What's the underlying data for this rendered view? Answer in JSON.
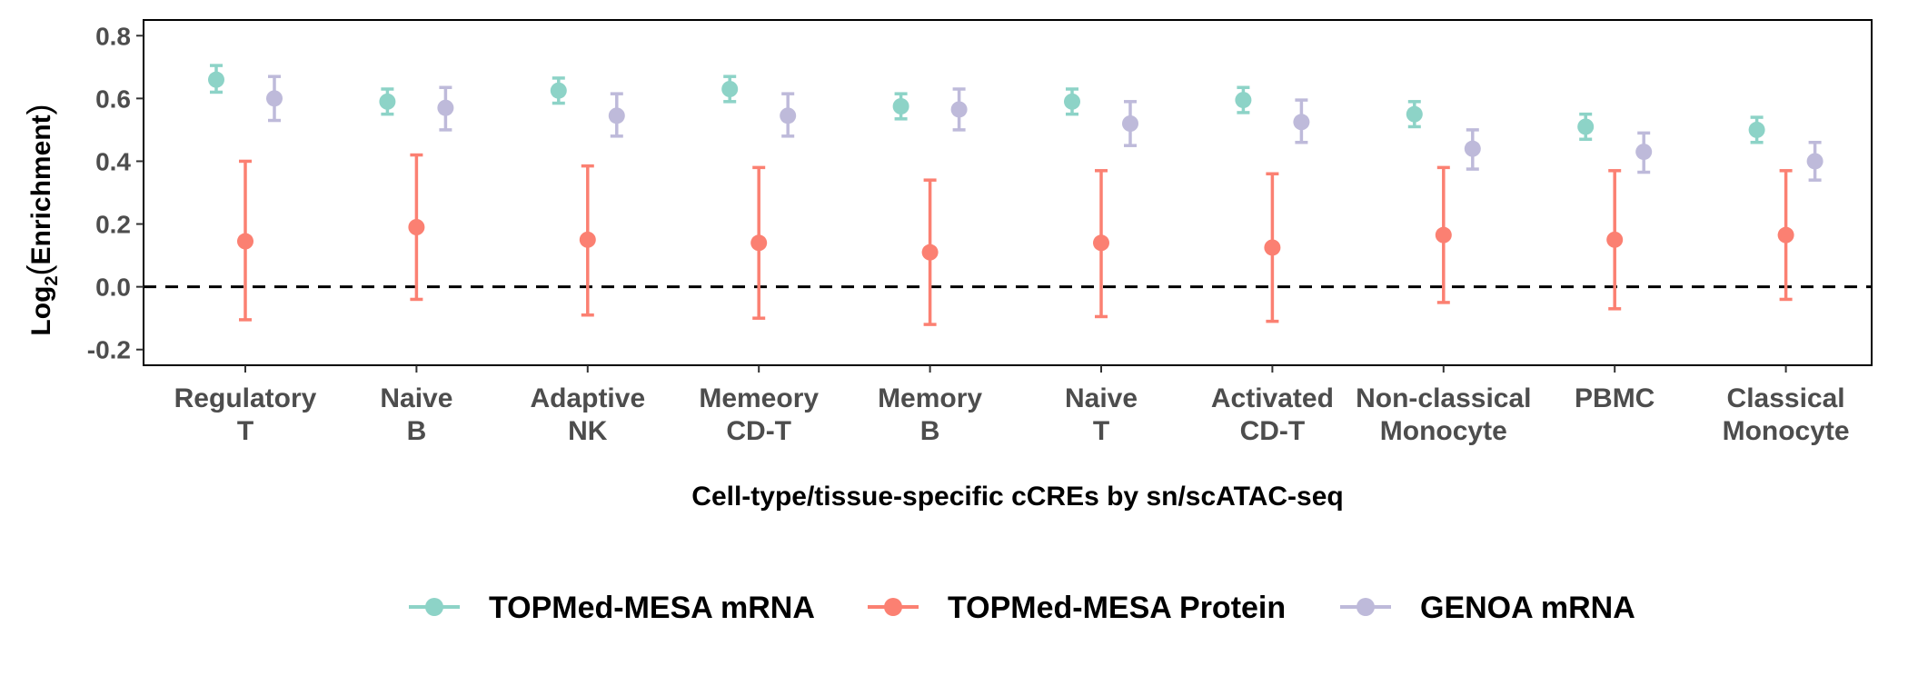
{
  "chart_data": {
    "type": "scatter",
    "subtype": "point-errorbar",
    "title": "",
    "xlabel": "Cell-type/tissue-specific cCREs by sn/scATAC-seq",
    "ylabel": {
      "prefix": "Log",
      "subscript": "2",
      "inner": "Enrichment"
    },
    "ylim": [
      -0.25,
      0.85
    ],
    "yticks": [
      -0.2,
      0.0,
      0.2,
      0.4,
      0.6,
      0.8
    ],
    "ytick_labels": [
      "-0.2",
      "0.0",
      "0.2",
      "0.4",
      "0.6",
      "0.8"
    ],
    "reference_line": {
      "y": 0.0,
      "style": "dashed",
      "color": "#000000"
    },
    "grid": false,
    "legend_position": "bottom",
    "categories": [
      {
        "line1": "Regulatory",
        "line2": "T"
      },
      {
        "line1": "Naive",
        "line2": "B"
      },
      {
        "line1": "Adaptive",
        "line2": "NK"
      },
      {
        "line1": "Memeory",
        "line2": "CD-T"
      },
      {
        "line1": "Memory",
        "line2": "B"
      },
      {
        "line1": "Naive",
        "line2": "T"
      },
      {
        "line1": "Activated",
        "line2": "CD-T"
      },
      {
        "line1": "Non-classical",
        "line2": "Monocyte"
      },
      {
        "line1": "PBMC",
        "line2": ""
      },
      {
        "line1": "Classical",
        "line2": "Monocyte"
      }
    ],
    "series": [
      {
        "name": "TOPMed-MESA mRNA",
        "color": "#8dd3c7",
        "values": [
          0.66,
          0.59,
          0.625,
          0.63,
          0.575,
          0.59,
          0.595,
          0.55,
          0.51,
          0.5
        ],
        "lower": [
          0.62,
          0.55,
          0.585,
          0.59,
          0.535,
          0.55,
          0.555,
          0.51,
          0.47,
          0.46
        ],
        "upper": [
          0.705,
          0.63,
          0.665,
          0.67,
          0.615,
          0.63,
          0.635,
          0.59,
          0.55,
          0.54
        ]
      },
      {
        "name": "TOPMed-MESA Protein",
        "color": "#fb8072",
        "values": [
          0.145,
          0.19,
          0.15,
          0.14,
          0.11,
          0.14,
          0.125,
          0.165,
          0.15,
          0.165
        ],
        "lower": [
          -0.105,
          -0.04,
          -0.09,
          -0.1,
          -0.12,
          -0.095,
          -0.11,
          -0.05,
          -0.07,
          -0.04
        ],
        "upper": [
          0.4,
          0.42,
          0.385,
          0.38,
          0.34,
          0.37,
          0.36,
          0.38,
          0.37,
          0.37
        ]
      },
      {
        "name": "GENOA mRNA",
        "color": "#bebada",
        "values": [
          0.6,
          0.57,
          0.545,
          0.545,
          0.565,
          0.52,
          0.525,
          0.44,
          0.43,
          0.4
        ],
        "lower": [
          0.53,
          0.5,
          0.48,
          0.48,
          0.5,
          0.45,
          0.46,
          0.375,
          0.365,
          0.34
        ],
        "upper": [
          0.67,
          0.635,
          0.615,
          0.615,
          0.63,
          0.59,
          0.595,
          0.5,
          0.49,
          0.46
        ]
      }
    ]
  }
}
